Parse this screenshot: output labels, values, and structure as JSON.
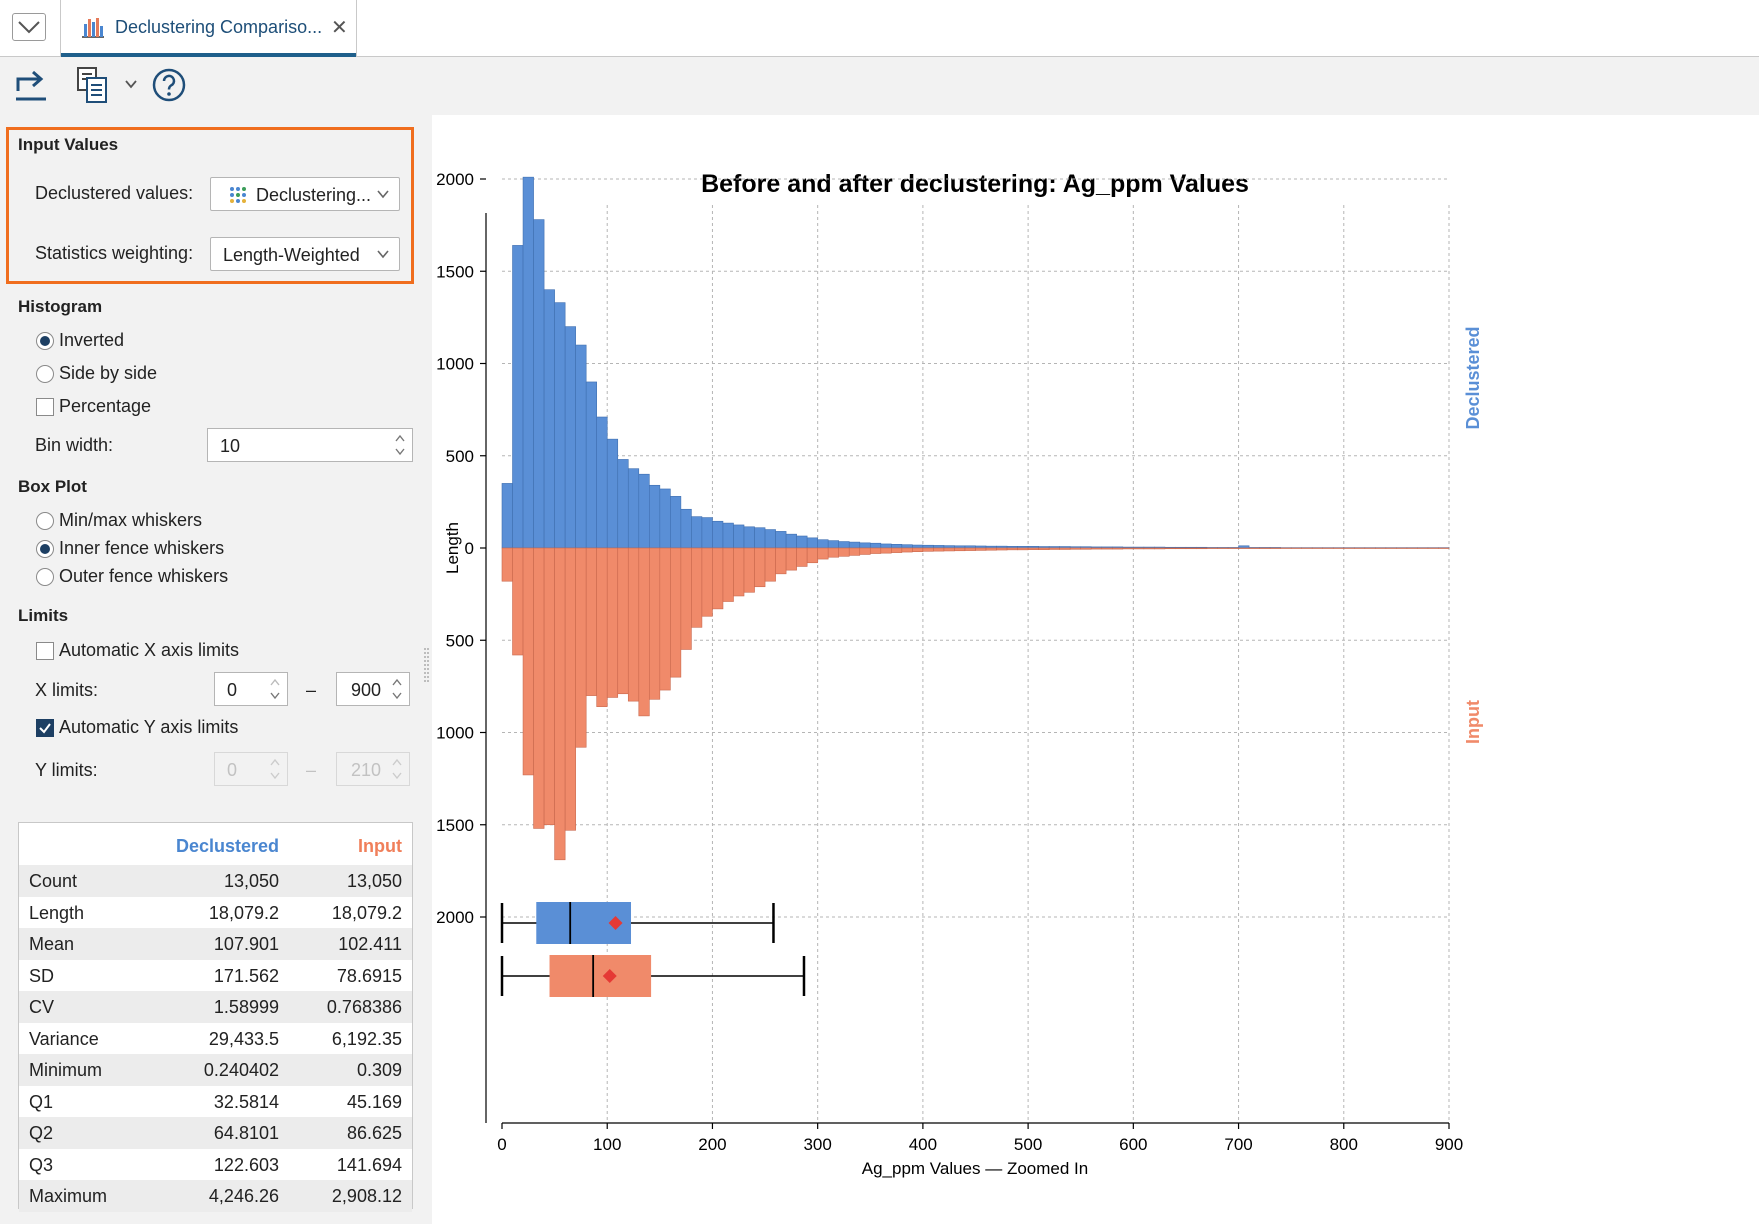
{
  "tab": {
    "title": "Declustering Compariso...",
    "close": "✕"
  },
  "panel": {
    "input_values": {
      "heading": "Input Values",
      "declustered_label": "Declustered values:",
      "declustered_value": "Declustering...",
      "weighting_label": "Statistics weighting:",
      "weighting_value": "Length-Weighted"
    },
    "histogram": {
      "heading": "Histogram",
      "options": [
        "Inverted",
        "Side by side"
      ],
      "selected": "Inverted",
      "percentage_label": "Percentage",
      "percentage_checked": false,
      "bin_width_label": "Bin width:",
      "bin_width_value": "10"
    },
    "box_plot": {
      "heading": "Box Plot",
      "options": [
        "Min/max whiskers",
        "Inner fence whiskers",
        "Outer fence whiskers"
      ],
      "selected": "Inner fence whiskers"
    },
    "limits": {
      "heading": "Limits",
      "auto_x_label": "Automatic X axis limits",
      "auto_x_checked": false,
      "x_label": "X limits:",
      "x_min": "0",
      "x_max": "900",
      "auto_y_label": "Automatic Y axis limits",
      "auto_y_checked": true,
      "y_label": "Y limits:",
      "y_min": "0",
      "y_max": "210",
      "dash": "–"
    }
  },
  "stats": {
    "col1": "Declustered",
    "col2": "Input",
    "rows": [
      {
        "name": "Count",
        "declustered": "13,050",
        "input": "13,050"
      },
      {
        "name": "Length",
        "declustered": "18,079.2",
        "input": "18,079.2"
      },
      {
        "name": "Mean",
        "declustered": "107.901",
        "input": "102.411"
      },
      {
        "name": "SD",
        "declustered": "171.562",
        "input": "78.6915"
      },
      {
        "name": "CV",
        "declustered": "1.58999",
        "input": "0.768386"
      },
      {
        "name": "Variance",
        "declustered": "29,433.5",
        "input": "6,192.35"
      },
      {
        "name": "Minimum",
        "declustered": "0.240402",
        "input": "0.309"
      },
      {
        "name": "Q1",
        "declustered": "32.5814",
        "input": "45.169"
      },
      {
        "name": "Q2",
        "declustered": "64.8101",
        "input": "86.625"
      },
      {
        "name": "Q3",
        "declustered": "122.603",
        "input": "141.694"
      },
      {
        "name": "Maximum",
        "declustered": "4,246.26",
        "input": "2,908.12"
      }
    ]
  },
  "colors": {
    "declustered": "#5a8fd6",
    "input": "#f08a6a",
    "accent": "#f06e1e",
    "mean_marker": "#e53935"
  },
  "chart_data": {
    "type": "bar",
    "title": "Before and after declustering: Ag_ppm Values",
    "xlabel": "Ag_ppm Values — Zoomed In",
    "ylabel": "Length",
    "xlim": [
      0,
      900
    ],
    "ylim_top": [
      0,
      2000
    ],
    "ylim_bottom": [
      0,
      2000
    ],
    "x_ticks": [
      "0",
      "100",
      "200",
      "300",
      "400",
      "500",
      "600",
      "700",
      "800",
      "900"
    ],
    "y_ticks_top": [
      "2000",
      "1500",
      "1000",
      "500",
      "0"
    ],
    "y_ticks_bottom": [
      "500",
      "1000",
      "1500",
      "2000"
    ],
    "bin_width": 10,
    "series": [
      {
        "name": "Declustered",
        "side_label": "Declustered",
        "values": [
          350,
          1640,
          2010,
          1780,
          1400,
          1330,
          1200,
          1100,
          900,
          710,
          590,
          480,
          430,
          400,
          340,
          320,
          280,
          210,
          170,
          165,
          145,
          135,
          125,
          115,
          110,
          100,
          90,
          75,
          65,
          55,
          45,
          40,
          35,
          32,
          28,
          26,
          22,
          20,
          18,
          16,
          15,
          14,
          13,
          12,
          12,
          11,
          10,
          10,
          9,
          9,
          9,
          8,
          8,
          8,
          7,
          7,
          6,
          6,
          6,
          5,
          5,
          5,
          5,
          4,
          4,
          4,
          4,
          3,
          3,
          3,
          12,
          3,
          3,
          3,
          2,
          2,
          2,
          2,
          2,
          2,
          2,
          2,
          2,
          2,
          2,
          2,
          2,
          2,
          2,
          2
        ]
      },
      {
        "name": "Input",
        "side_label": "Input",
        "values": [
          180,
          580,
          1230,
          1520,
          1500,
          1690,
          1530,
          1080,
          800,
          860,
          810,
          790,
          830,
          910,
          820,
          770,
          700,
          550,
          430,
          370,
          330,
          290,
          260,
          240,
          210,
          180,
          140,
          120,
          100,
          80,
          60,
          50,
          45,
          40,
          35,
          30,
          28,
          25,
          22,
          20,
          18,
          17,
          16,
          15,
          14,
          13,
          12,
          11,
          10,
          10,
          9,
          9,
          8,
          8,
          7,
          7,
          6,
          6,
          6,
          5,
          5,
          5,
          5,
          4,
          4,
          4,
          4,
          3,
          3,
          3,
          3,
          3,
          3,
          3,
          2,
          2,
          2,
          2,
          2,
          2,
          2,
          2,
          2,
          2,
          2,
          2,
          2,
          2,
          2,
          2
        ]
      }
    ],
    "box_plots": [
      {
        "name": "Declustered",
        "whisker_low": 0,
        "q1": 32.5814,
        "median": 64.8101,
        "q3": 122.603,
        "whisker_high": 258,
        "mean": 107.901
      },
      {
        "name": "Input",
        "whisker_low": 0,
        "q1": 45.169,
        "median": 86.625,
        "q3": 141.694,
        "whisker_high": 287,
        "mean": 102.411
      }
    ]
  }
}
